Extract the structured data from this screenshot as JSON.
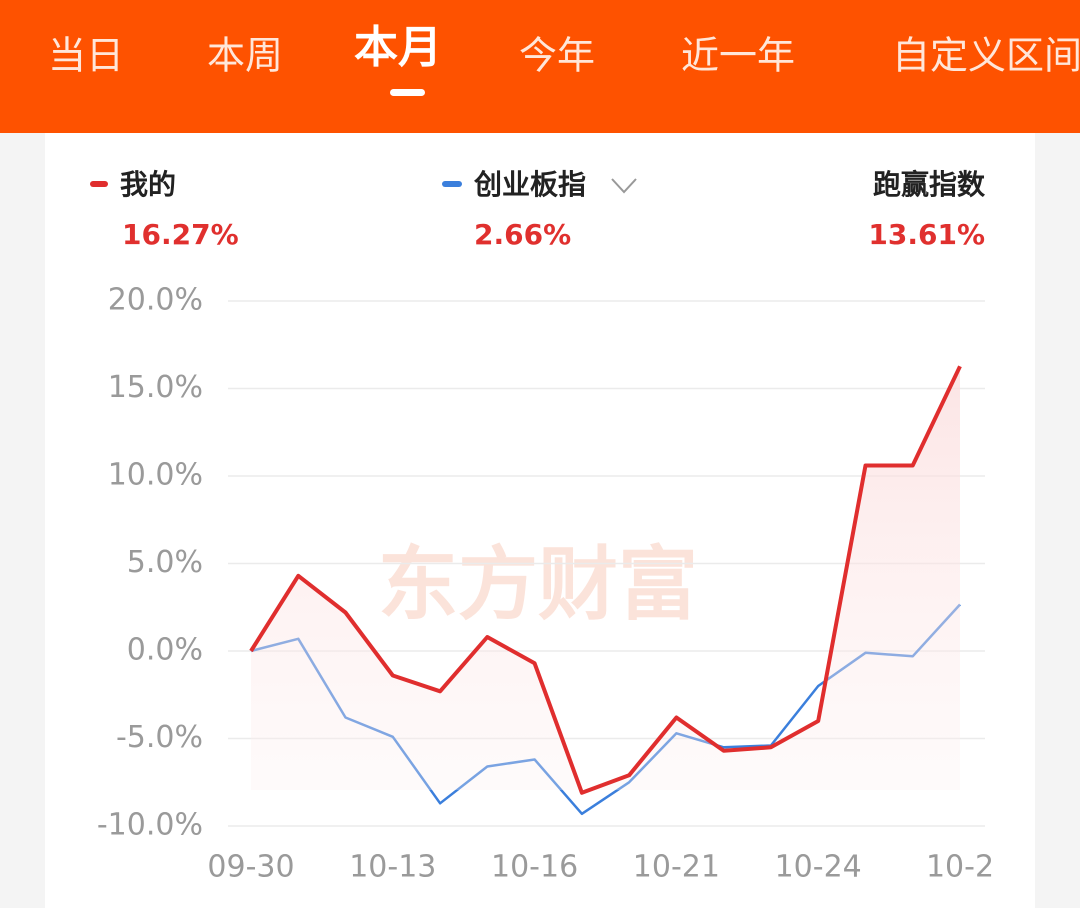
{
  "tabs": [
    "当日",
    "本周",
    "本月",
    "今年",
    "近一年",
    "自定义区间"
  ],
  "active_tab": 2,
  "legend": [
    {
      "name": "我的",
      "value": "16.27%"
    },
    {
      "name": "创业板指",
      "value": "2.66%"
    },
    {
      "name": "跑赢指数",
      "value": "13.61%"
    }
  ],
  "watermark": "东方财富",
  "chart_data": {
    "type": "line",
    "categories": [
      "09-30",
      null,
      null,
      "10-13",
      null,
      null,
      "10-16",
      null,
      null,
      "10-21",
      null,
      null,
      "10-24",
      null,
      null,
      "10-2"
    ],
    "series": [
      {
        "name": "我的",
        "color": "#e02e2e",
        "values": [
          0,
          4.3,
          2.2,
          -1.4,
          -2.3,
          0.8,
          -0.7,
          -8.1,
          -7.1,
          -3.8,
          -5.7,
          -5.5,
          -4.0,
          10.6,
          10.6,
          16.27
        ]
      },
      {
        "name": "创业板指",
        "color": "#3b7fdc",
        "values": [
          0,
          0.7,
          -3.8,
          -4.9,
          -8.7,
          -6.6,
          -6.2,
          -9.3,
          -7.5,
          -4.7,
          -5.5,
          -5.4,
          -2.0,
          -0.1,
          -0.3,
          2.66
        ]
      }
    ],
    "ylim": [
      -10,
      20
    ],
    "yticks": [
      {
        "value": 20,
        "label": "20.0%"
      },
      {
        "value": 15,
        "label": "15.0%"
      },
      {
        "value": 10,
        "label": "10.0%"
      },
      {
        "value": 5,
        "label": "5.0%"
      },
      {
        "value": 0,
        "label": "0.0%"
      },
      {
        "value": -5,
        "label": "-5.0%"
      },
      {
        "value": -10,
        "label": "-10.0%"
      }
    ],
    "grid": true
  }
}
